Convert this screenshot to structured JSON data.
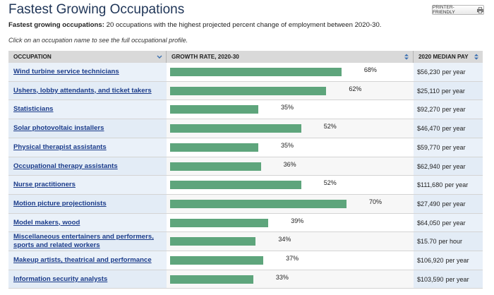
{
  "page_title": "Fastest Growing Occupations",
  "printer_button": "PRINTER-FRIENDLY",
  "subtitle_bold": "Fastest growing occupations:",
  "subtitle_rest": " 20 occupations with the highest projected percent change of employment between 2020-30.",
  "instructions": "Click on an occupation name to see the full occupational profile.",
  "headers": {
    "occupation": "OCCUPATION",
    "growth": "GROWTH RATE, 2020-30",
    "pay": "2020 MEDIAN PAY"
  },
  "rows": [
    {
      "name": "Wind turbine service technicians",
      "rate_label": "68%",
      "rate": 68,
      "pay": "$56,230",
      "unit": "per year"
    },
    {
      "name": "Ushers, lobby attendants, and ticket takers",
      "rate_label": "62%",
      "rate": 62,
      "pay": "$25,110",
      "unit": "per year"
    },
    {
      "name": "Statisticians",
      "rate_label": "35%",
      "rate": 35,
      "pay": "$92,270",
      "unit": "per year"
    },
    {
      "name": "Solar photovoltaic installers",
      "rate_label": "52%",
      "rate": 52,
      "pay": "$46,470",
      "unit": "per year"
    },
    {
      "name": "Physical therapist assistants",
      "rate_label": "35%",
      "rate": 35,
      "pay": "$59,770",
      "unit": "per year"
    },
    {
      "name": "Occupational therapy assistants",
      "rate_label": "36%",
      "rate": 36,
      "pay": "$62,940",
      "unit": "per year"
    },
    {
      "name": "Nurse practitioners",
      "rate_label": "52%",
      "rate": 52,
      "pay": "$111,680",
      "unit": "per year"
    },
    {
      "name": "Motion picture projectionists",
      "rate_label": "70%",
      "rate": 70,
      "pay": "$27,490",
      "unit": "per year"
    },
    {
      "name": "Model makers, wood",
      "rate_label": "39%",
      "rate": 39,
      "pay": "$64,050",
      "unit": "per year"
    },
    {
      "name": "Miscellaneous entertainers and performers, sports and related workers",
      "rate_label": "34%",
      "rate": 34,
      "pay": "$15.70",
      "unit": "per hour"
    },
    {
      "name": "Makeup artists, theatrical and performance",
      "rate_label": "37%",
      "rate": 37,
      "pay": "$106,920",
      "unit": "per year"
    },
    {
      "name": "Information security analysts",
      "rate_label": "33%",
      "rate": 33,
      "pay": "$103,590",
      "unit": "per year"
    }
  ],
  "colors": {
    "bar": "#5ea57c",
    "link": "#1a3b8a",
    "title": "#1f3557"
  },
  "icons": {
    "printer": "printer-icon",
    "sort": "sort-arrows-icon",
    "sort_down": "chevron-down-icon"
  }
}
